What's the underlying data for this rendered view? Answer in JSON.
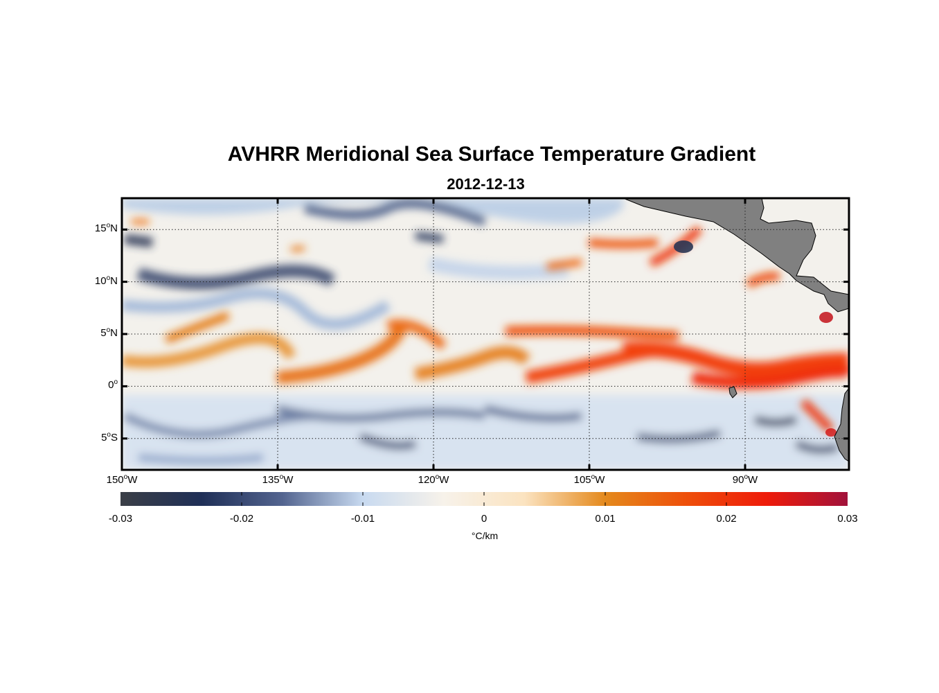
{
  "title": "AVHRR Meridional Sea Surface Temperature Gradient",
  "subtitle": "2012-12-13",
  "map": {
    "extent": {
      "lon": [
        -150,
        -80
      ],
      "lat": [
        -8,
        18
      ]
    },
    "grid": true,
    "land_color": "#808080",
    "lat_ticks": [
      {
        "deg": "15",
        "hemi": "N",
        "value": 15
      },
      {
        "deg": "10",
        "hemi": "N",
        "value": 10
      },
      {
        "deg": "5",
        "hemi": "N",
        "value": 5
      },
      {
        "deg": "0",
        "hemi": "",
        "value": 0
      },
      {
        "deg": "5",
        "hemi": "S",
        "value": -5
      }
    ],
    "lon_ticks": [
      {
        "deg": "150",
        "hemi": "W",
        "value": -150
      },
      {
        "deg": "135",
        "hemi": "W",
        "value": -135
      },
      {
        "deg": "120",
        "hemi": "W",
        "value": -120
      },
      {
        "deg": "105",
        "hemi": "W",
        "value": -105
      },
      {
        "deg": "90",
        "hemi": "W",
        "value": -90
      }
    ]
  },
  "colorbar": {
    "range": [
      -0.03,
      0.03
    ],
    "ticks": [
      "-0.03",
      "-0.02",
      "-0.01",
      "0",
      "0.01",
      "0.02",
      "0.03"
    ],
    "unit": "°C/km",
    "colors": [
      "#3b3f47",
      "#1f2f57",
      "#53648f",
      "#c8daf0",
      "#f7f2ea",
      "#fbe3c0",
      "#e4891c",
      "#ee4f0a",
      "#ee1b0a",
      "#a1123b"
    ]
  }
}
